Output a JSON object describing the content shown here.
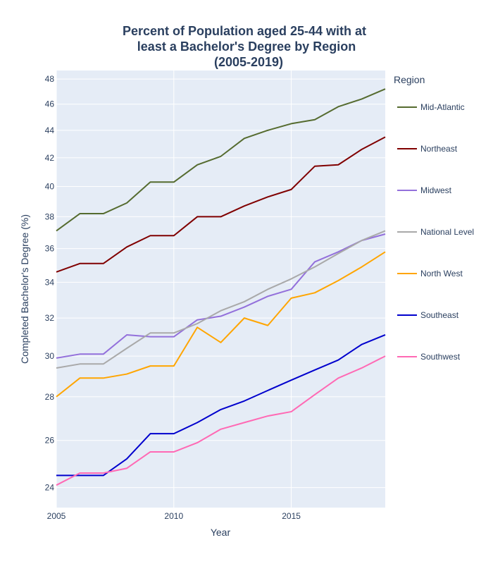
{
  "chart_data": {
    "type": "line",
    "title_lines": [
      "Percent of Population aged 25-44 with at",
      "least a Bachelor's Degree by Region",
      "(2005-2019)"
    ],
    "xlabel": "Year",
    "ylabel": "Completed Bachelor's Degree (%)",
    "xlim": [
      2005,
      2019
    ],
    "ylim": [
      23.2,
      48.7
    ],
    "y_scale": "log",
    "x_ticks": [
      2005,
      2010,
      2015
    ],
    "y_ticks": [
      24,
      26,
      28,
      30,
      32,
      34,
      36,
      38,
      40,
      42,
      44,
      46,
      48
    ],
    "grid": true,
    "legend_title": "Region",
    "legend_position": "right",
    "x": [
      2005,
      2006,
      2007,
      2008,
      2009,
      2010,
      2011,
      2012,
      2013,
      2014,
      2015,
      2016,
      2017,
      2018,
      2019
    ],
    "series": [
      {
        "name": "Mid-Atlantic",
        "color": "#556b2f",
        "values": [
          37.1,
          38.2,
          38.2,
          38.9,
          40.3,
          40.3,
          41.5,
          42.1,
          43.4,
          44.0,
          44.5,
          44.8,
          45.8,
          46.4,
          47.2
        ]
      },
      {
        "name": "Northeast",
        "color": "#800000",
        "values": [
          34.6,
          35.1,
          35.1,
          36.1,
          36.8,
          36.8,
          38.0,
          38.0,
          38.7,
          39.3,
          39.8,
          41.4,
          41.5,
          42.6,
          43.5
        ]
      },
      {
        "name": "Midwest",
        "color": "#9370db",
        "values": [
          29.9,
          30.1,
          30.1,
          31.1,
          31.0,
          31.0,
          31.9,
          32.1,
          32.6,
          33.2,
          33.6,
          35.2,
          35.8,
          36.5,
          36.9
        ]
      },
      {
        "name": "National Level",
        "color": "#a9a9a9",
        "values": [
          29.4,
          29.6,
          29.6,
          30.4,
          31.2,
          31.2,
          31.7,
          32.4,
          32.9,
          33.6,
          34.2,
          34.9,
          35.7,
          36.5,
          37.1
        ]
      },
      {
        "name": "North West",
        "color": "#ffa500",
        "values": [
          28.0,
          28.9,
          28.9,
          29.1,
          29.5,
          29.5,
          31.5,
          30.7,
          32.0,
          31.6,
          33.1,
          33.4,
          34.1,
          34.9,
          35.8
        ]
      },
      {
        "name": "Southeast",
        "color": "#0000cd",
        "values": [
          24.5,
          24.5,
          24.5,
          25.2,
          26.3,
          26.3,
          26.8,
          27.4,
          27.8,
          28.3,
          28.8,
          29.3,
          29.8,
          30.6,
          31.1
        ]
      },
      {
        "name": "Southwest",
        "color": "#ff69b4",
        "values": [
          24.1,
          24.6,
          24.6,
          24.8,
          25.5,
          25.5,
          25.9,
          26.5,
          26.8,
          27.1,
          27.3,
          28.1,
          28.9,
          29.4,
          30.0
        ]
      }
    ]
  }
}
